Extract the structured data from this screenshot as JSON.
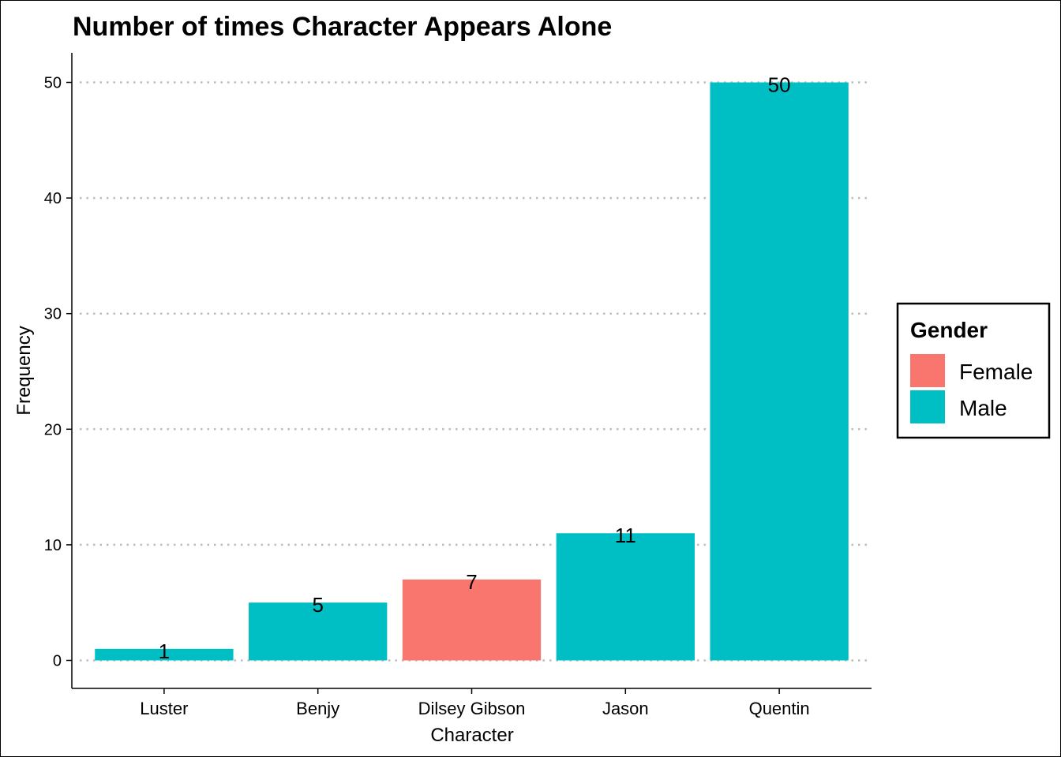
{
  "chart_data": {
    "type": "bar",
    "title": "Number of times Character Appears Alone",
    "xlabel": "Character",
    "ylabel": "Frequency",
    "categories": [
      "Luster",
      "Benjy",
      "Dilsey Gibson",
      "Jason",
      "Quentin"
    ],
    "values": [
      1,
      5,
      7,
      11,
      50
    ],
    "groups": [
      "Male",
      "Male",
      "Female",
      "Male",
      "Male"
    ],
    "ylim": [
      0,
      52.5
    ],
    "yticks": [
      0,
      10,
      20,
      30,
      40,
      50
    ],
    "ytick_labels": [
      "0",
      "10",
      "20",
      "30",
      "40",
      "50"
    ],
    "grid": "horizontal dotted",
    "data_labels": true,
    "legend": {
      "title": "Gender",
      "position": "right",
      "entries": [
        {
          "label": "Female",
          "color": "#F8766D"
        },
        {
          "label": "Male",
          "color": "#00BFC4"
        }
      ]
    }
  }
}
